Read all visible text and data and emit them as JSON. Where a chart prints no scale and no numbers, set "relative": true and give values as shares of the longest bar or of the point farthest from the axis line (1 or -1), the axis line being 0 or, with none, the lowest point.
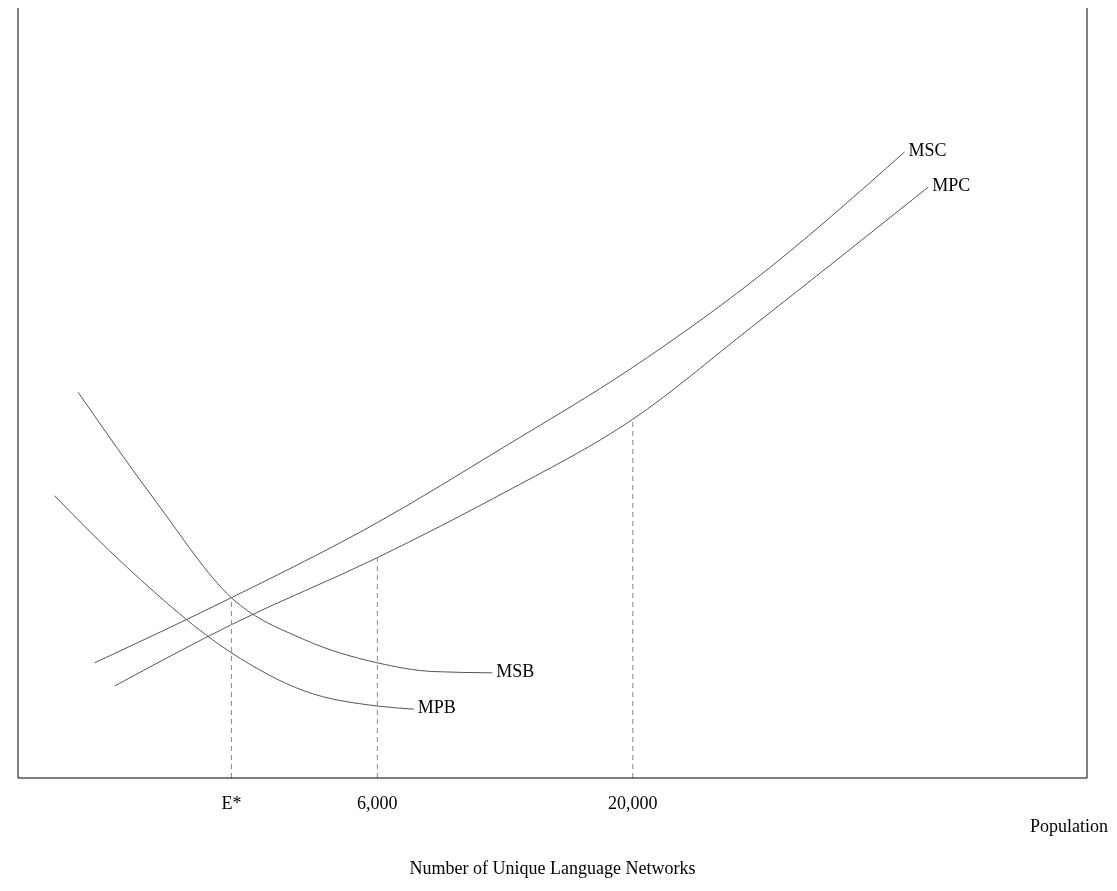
{
  "chart_data": {
    "type": "line",
    "relative": true,
    "xlabel": "Number of Unique Language Networks",
    "annotations": [
      "Population"
    ],
    "xlim": [
      -13700,
      44900
    ],
    "xticks": [
      {
        "value": -2000,
        "label": "E*"
      },
      {
        "value": 6000,
        "label": "6,000"
      },
      {
        "value": 20000,
        "label": "20,000"
      }
    ],
    "grid": false,
    "marker": "none",
    "line_style": "solid",
    "series": [
      {
        "name": "MSC",
        "color": "#555555",
        "x": [
          -9500,
          -2000,
          6000,
          12900,
          20000,
          26500,
          34900
        ],
        "values": [
          0.184,
          0.288,
          0.408,
          0.528,
          0.656,
          0.792,
          1
        ]
      },
      {
        "name": "MPC",
        "color": "#555555",
        "x": [
          -8400,
          -2000,
          6000,
          12900,
          20000,
          26500,
          36200
        ],
        "values": [
          0.147,
          0.245,
          0.352,
          0.455,
          0.573,
          0.72,
          0.944
        ]
      },
      {
        "name": "MSB",
        "color": "#555555",
        "x": [
          -10400,
          -6100,
          -2000,
          2000,
          6000,
          9100,
          12300
        ],
        "values": [
          0.616,
          0.44,
          0.288,
          0.221,
          0.184,
          0.17,
          0.168
        ]
      },
      {
        "name": "MPB",
        "color": "#555555",
        "x": [
          -11700,
          -7700,
          -2000,
          2000,
          6000,
          8000
        ],
        "values": [
          0.451,
          0.336,
          0.2,
          0.139,
          0.115,
          0.11
        ]
      },
      {
        "color": "#888888",
        "line_style": "dashed",
        "x": [
          -2000,
          -2000
        ],
        "values": [
          0,
          0.288
        ]
      },
      {
        "color": "#888888",
        "line_style": "dashed",
        "x": [
          6000,
          6000
        ],
        "values": [
          0,
          0.352
        ]
      },
      {
        "color": "#888888",
        "line_style": "dashed",
        "x": [
          20000,
          20000
        ],
        "values": [
          0,
          0.573
        ]
      }
    ]
  }
}
